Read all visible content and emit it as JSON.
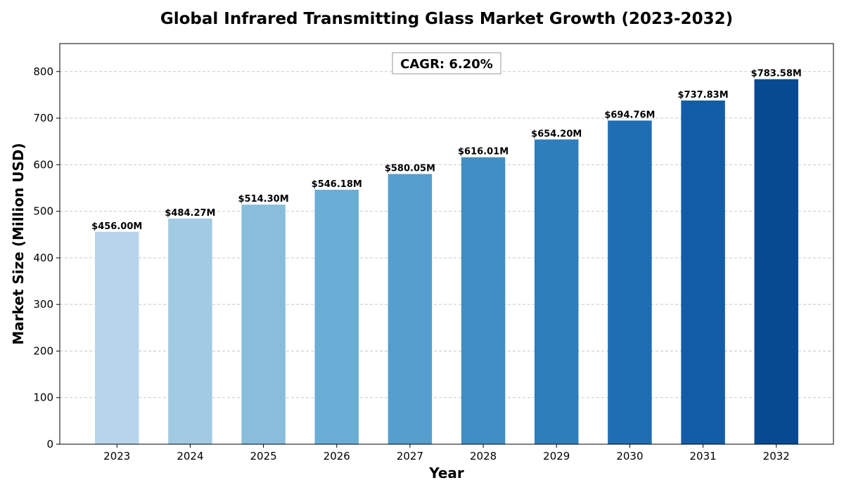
{
  "chart_data": {
    "type": "bar",
    "title": "Global Infrared Transmitting Glass Market Growth (2023-2032)",
    "xlabel": "Year",
    "ylabel": "Market Size (Million USD)",
    "categories": [
      "2023",
      "2024",
      "2025",
      "2026",
      "2027",
      "2028",
      "2029",
      "2030",
      "2031",
      "2032"
    ],
    "values": [
      456.0,
      484.27,
      514.3,
      546.18,
      580.05,
      616.01,
      654.2,
      694.76,
      737.83,
      783.58
    ],
    "data_labels": [
      "$456.00M",
      "$484.27M",
      "$514.30M",
      "$546.18M",
      "$580.05M",
      "$616.01M",
      "$654.20M",
      "$694.76M",
      "$737.83M",
      "$783.58M"
    ],
    "bar_colors": [
      "#b7d4ea",
      "#a1cbe2",
      "#88bedc",
      "#6aaed6",
      "#549fcd",
      "#3f8fc5",
      "#2e7ebc",
      "#1f6eb3",
      "#125ea6",
      "#084a92"
    ],
    "ylim": [
      0,
      860
    ],
    "yticks": [
      0,
      100,
      200,
      300,
      400,
      500,
      600,
      700,
      800
    ],
    "grid": "y-dashed",
    "annotation": "CAGR: 6.20%"
  }
}
